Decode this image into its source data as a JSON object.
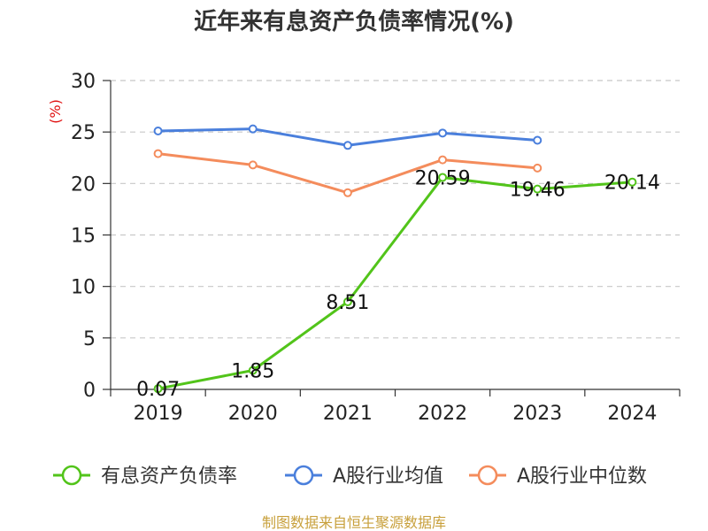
{
  "chart_data": {
    "type": "line",
    "title": "近年来有息资产负债率情况(%)",
    "unit_label": "(%)",
    "categories": [
      "2019",
      "2020",
      "2021",
      "2022",
      "2023",
      "2024"
    ],
    "ylim": [
      0,
      30
    ],
    "yticks": [
      "0",
      "5",
      "10",
      "15",
      "20",
      "25",
      "30"
    ],
    "grid": true,
    "legend_position": "bottom",
    "series": [
      {
        "name": "有息资产负债率",
        "color": "#52c41a",
        "values": [
          0.07,
          1.85,
          8.51,
          20.59,
          19.46,
          20.14
        ],
        "labels": [
          "0.07",
          "1.85",
          "8.51",
          "20.59",
          "19.46",
          "20.14"
        ]
      },
      {
        "name": "A股行业均值",
        "color": "#4a7fdc",
        "values": [
          25.1,
          25.3,
          23.7,
          24.9,
          24.2,
          null
        ]
      },
      {
        "name": "A股行业中位数",
        "color": "#f48c5c",
        "values": [
          22.9,
          21.8,
          19.1,
          22.3,
          21.5,
          null
        ]
      }
    ]
  },
  "source": "制图数据来自恒生聚源数据库"
}
